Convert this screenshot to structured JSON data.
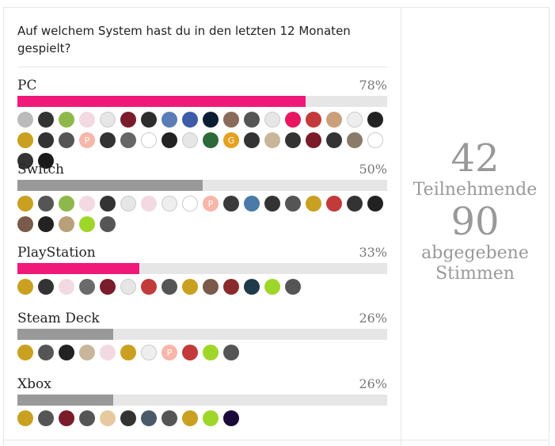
{
  "poll": {
    "question": "Auf welchem System hast du in den letzten 12 Monaten gespielt?",
    "participants_count": "42",
    "participants_label": "Teilnehmende",
    "votes_count": "90",
    "votes_label": "abgegebene Stimmen"
  },
  "options": [
    {
      "label": "PC",
      "percent_text": "78%",
      "percent": 78,
      "bar_color": "#f0197a",
      "avatars": [
        "#bbbbbb",
        "#333333",
        "#8fb84a",
        "#f3d9e2",
        "#e6e6e6",
        "#7a1c2a",
        "#2d2d2d",
        "#5a7db5",
        "#3c5ca8",
        "#0b1d35",
        "#8a6a5a",
        "#555555",
        "#e6e6e6",
        "#e8175d",
        "#c33a3a",
        "#c9a07a",
        "#eeeeee",
        "#222222",
        "#c9a020",
        "#333333",
        "#555555",
        "#f6b6a8",
        "#333333",
        "#666666",
        "#ffffff",
        "#222222",
        "#e6e6e6",
        "#2d6a3a",
        "#e6a020",
        "#333333",
        "#c9b69a",
        "#333333",
        "#7a1c2a",
        "#333333",
        "#8a7a6a",
        "#ffffff",
        "#333333",
        "#1a1a1a"
      ],
      "avatar_letters": {
        "21": "P",
        "28": "G"
      }
    },
    {
      "label": "Switch",
      "percent_text": "50%",
      "percent": 50,
      "bar_color": "#999999",
      "avatars": [
        "#c9a020",
        "#555555",
        "#8fb84a",
        "#f3d9e2",
        "#333333",
        "#e6e6e6",
        "#f3d9e2",
        "#eeeeee",
        "#ffffff",
        "#f6b6a8",
        "#3a3a3a",
        "#4a7aa8",
        "#333333",
        "#555555",
        "#c9a020",
        "#c33a3a",
        "#333333",
        "#222222",
        "#7a5a4a",
        "#222222",
        "#b8a07a",
        "#9fd62a",
        "#555555"
      ],
      "avatar_letters": {
        "9": "P"
      }
    },
    {
      "label": "PlayStation",
      "percent_text": "33%",
      "percent": 33,
      "bar_color": "#f0197a",
      "avatars": [
        "#c9a020",
        "#333333",
        "#f3d9e2",
        "#6a6a6a",
        "#7a1c2a",
        "#e6e6e6",
        "#c33a3a",
        "#555555",
        "#c9a020",
        "#7a5a4a",
        "#8a2a2a",
        "#1f3a4a",
        "#9fd62a",
        "#555555"
      ],
      "avatar_letters": {}
    },
    {
      "label": "Steam Deck",
      "percent_text": "26%",
      "percent": 26,
      "bar_color": "#999999",
      "avatars": [
        "#c9a020",
        "#555555",
        "#222222",
        "#c9b69a",
        "#f3d9e2",
        "#c9a020",
        "#eeeeee",
        "#f6b6a8",
        "#c33a3a",
        "#9fd62a",
        "#555555"
      ],
      "avatar_letters": {
        "7": "P"
      }
    },
    {
      "label": "Xbox",
      "percent_text": "26%",
      "percent": 26,
      "bar_color": "#999999",
      "avatars": [
        "#c9a020",
        "#555555",
        "#7a1c2a",
        "#555555",
        "#e6c9a0",
        "#333333",
        "#4a5a6a",
        "#555555",
        "#c9a020",
        "#9fd62a",
        "#1a0a3a"
      ],
      "avatar_letters": {}
    }
  ]
}
